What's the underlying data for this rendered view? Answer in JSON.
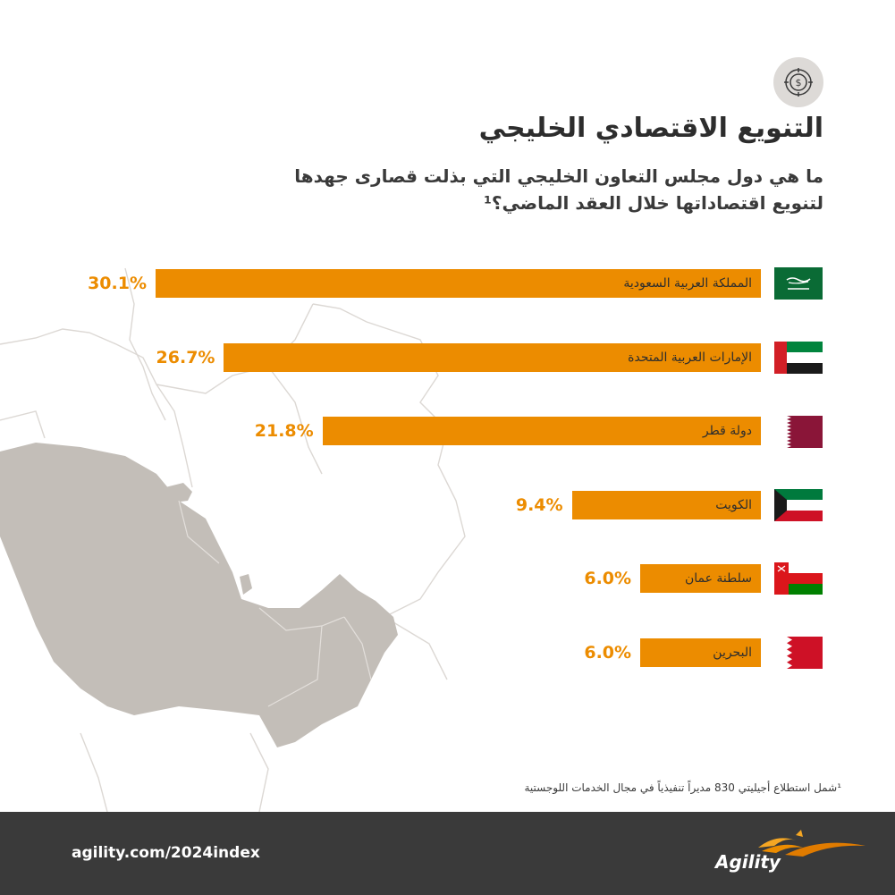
{
  "header": {
    "icon": "coin-target-icon",
    "title": "التنويع الاقتصادي الخليجي",
    "subtitle": "ما هي دول مجلس التعاون الخليجي التي بذلت قصارى جهدها لتنويع اقتصاداتها خلال العقد الماضي؟¹"
  },
  "chart_data": {
    "type": "bar",
    "orientation": "horizontal",
    "categories": [
      "المملكة العربية السعودية",
      "الإمارات العربية المتحدة",
      "دولة قطر",
      "الكويت",
      "سلطنة عمان",
      "البحرين"
    ],
    "values": [
      30.1,
      26.7,
      21.8,
      9.4,
      6.0,
      6.0
    ],
    "value_labels": [
      "30.1%",
      "26.7%",
      "21.8%",
      "9.4%",
      "6.0%",
      "6.0%"
    ],
    "flags": [
      "saudi-arabia-flag",
      "uae-flag",
      "qatar-flag",
      "kuwait-flag",
      "oman-flag",
      "bahrain-flag"
    ],
    "bar_color": "#ec8c00",
    "unit": "%"
  },
  "footnote": "¹شمل استطلاع أجيليتي 830 مديراً تنفيذياً في مجال الخدمات اللوجستية",
  "footer": {
    "url": "agility.com/2024index",
    "brand": "Agility"
  },
  "colors": {
    "accent": "#ec8c00",
    "footer_bg": "#3a3a3a",
    "map_land": "#c3beb8",
    "map_lines": "#dcd8d4"
  }
}
